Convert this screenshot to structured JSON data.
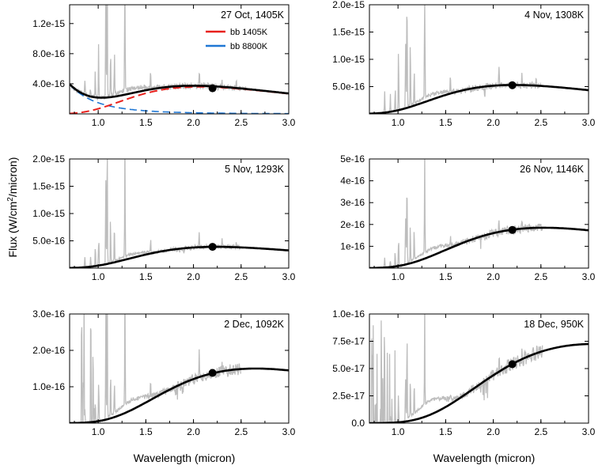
{
  "figure": {
    "ylabel": "Flux (W/cm",
    "ylabel_sup": "2",
    "ylabel_tail": "/micron)",
    "xlabel_left": "Wavelength (micron)",
    "xlabel_right": "Wavelength (micron)"
  },
  "colors": {
    "spectrum": "#bdbdbd",
    "model": "#000000",
    "bb_hot_component": "#e8201c",
    "bb_cold_component": "#1f77d4"
  },
  "chart_data": [
    {
      "type": "line",
      "title": "27 Oct, 1405K",
      "xlim": [
        0.7,
        3.0
      ],
      "ylim": [
        0,
        1.45e-15
      ],
      "xticks": [
        1.0,
        1.5,
        2.0,
        2.5,
        3.0
      ],
      "xtick_labels": [
        "1.0",
        "1.5",
        "2.0",
        "2.5",
        "3.0"
      ],
      "yticks": [
        4e-16,
        8e-16,
        1.2e-15
      ],
      "ytick_labels": [
        "4.0e-16",
        "8.0e-16",
        "1.2e-15"
      ],
      "temperature_K": 1405,
      "scale": 3.6e-16,
      "spectrum_range": [
        0.72,
        2.55
      ],
      "spike_scale": 1.0,
      "marker": {
        "x": 2.2,
        "y": 3.4e-16
      },
      "hot_component": {
        "temperature_K": 8800,
        "value_at_0_7": 3.9e-16
      },
      "legend": [
        {
          "label": "bb 1405K",
          "color": "#e8201c"
        },
        {
          "label": "bb 8800K",
          "color": "#1f77d4"
        }
      ]
    },
    {
      "type": "line",
      "title": "4 Nov, 1308K",
      "xlim": [
        0.7,
        3.0
      ],
      "ylim": [
        0,
        2e-15
      ],
      "xticks": [
        1.0,
        1.5,
        2.0,
        2.5,
        3.0
      ],
      "xtick_labels": [
        "1.0",
        "1.5",
        "2.0",
        "2.5",
        "3.0"
      ],
      "yticks": [
        5e-16,
        1e-15,
        1.5e-15,
        2e-15
      ],
      "ytick_labels": [
        "5.0e-16",
        "1.0e-15",
        "1.5e-15",
        "2.0e-15"
      ],
      "temperature_K": 1308,
      "scale": 5.3e-16,
      "spectrum_range": [
        0.8,
        2.5
      ],
      "spike_scale": 1.0,
      "marker": {
        "x": 2.2,
        "y": 5.25e-16
      }
    },
    {
      "type": "line",
      "title": "5 Nov, 1293K",
      "xlim": [
        0.7,
        3.0
      ],
      "ylim": [
        0,
        2e-15
      ],
      "xticks": [
        1.0,
        1.5,
        2.0,
        2.5,
        3.0
      ],
      "xtick_labels": [
        "1.0",
        "1.5",
        "2.0",
        "2.5",
        "3.0"
      ],
      "yticks": [
        5e-16,
        1e-15,
        1.5e-15,
        2e-15
      ],
      "ytick_labels": [
        "5.0e-16",
        "1.0e-15",
        "1.5e-15",
        "2.0e-15"
      ],
      "temperature_K": 1293,
      "scale": 3.9e-16,
      "spectrum_range": [
        0.8,
        2.5
      ],
      "spike_scale": 1.0,
      "marker": {
        "x": 2.2,
        "y": 3.9e-16
      }
    },
    {
      "type": "line",
      "title": "26 Nov, 1146K",
      "xlim": [
        0.7,
        3.0
      ],
      "ylim": [
        0,
        5e-16
      ],
      "xticks": [
        1.0,
        1.5,
        2.0,
        2.5,
        3.0
      ],
      "xtick_labels": [
        "1.0",
        "1.5",
        "2.0",
        "2.5",
        "3.0"
      ],
      "yticks": [
        1e-16,
        2e-16,
        3e-16,
        4e-16,
        5e-16
      ],
      "ytick_labels": [
        "1e-16",
        "2e-16",
        "3e-16",
        "4e-16",
        "5e-16"
      ],
      "temperature_K": 1146,
      "scale": 1.85e-16,
      "spectrum_range": [
        0.8,
        2.52
      ],
      "spike_scale": 0.5,
      "marker": {
        "x": 2.2,
        "y": 1.75e-16
      }
    },
    {
      "type": "line",
      "title": "2 Dec, 1092K",
      "xlim": [
        0.7,
        3.0
      ],
      "ylim": [
        0,
        3e-16
      ],
      "xticks": [
        1.0,
        1.5,
        2.0,
        2.5,
        3.0
      ],
      "xtick_labels": [
        "1.0",
        "1.5",
        "2.0",
        "2.5",
        "3.0"
      ],
      "yticks": [
        1e-16,
        2e-16,
        3e-16
      ],
      "ytick_labels": [
        "1.0e-16",
        "2.0e-16",
        "3.0e-16"
      ],
      "temperature_K": 1092,
      "scale": 1.5e-16,
      "spectrum_range": [
        0.8,
        2.5
      ],
      "spike_scale": 0.45,
      "marker": {
        "x": 2.2,
        "y": 1.38e-16
      }
    },
    {
      "type": "line",
      "title": "18 Dec, 950K",
      "xlim": [
        0.7,
        3.0
      ],
      "ylim": [
        0,
        1e-16
      ],
      "xticks": [
        1.0,
        1.5,
        2.0,
        2.5,
        3.0
      ],
      "xtick_labels": [
        "1.0",
        "1.5",
        "2.0",
        "2.5",
        "3.0"
      ],
      "yticks": [
        0,
        2.5e-17,
        5e-17,
        7.5e-17,
        1e-16
      ],
      "ytick_labels": [
        "0.0",
        "2.5e-17",
        "5.0e-17",
        "7.5e-17",
        "1.0e-16"
      ],
      "temperature_K": 950,
      "scale": 7.25e-17,
      "spectrum_range": [
        0.72,
        2.52
      ],
      "spike_scale": 0.22,
      "marker": {
        "x": 2.2,
        "y": 5.4e-17
      }
    }
  ]
}
